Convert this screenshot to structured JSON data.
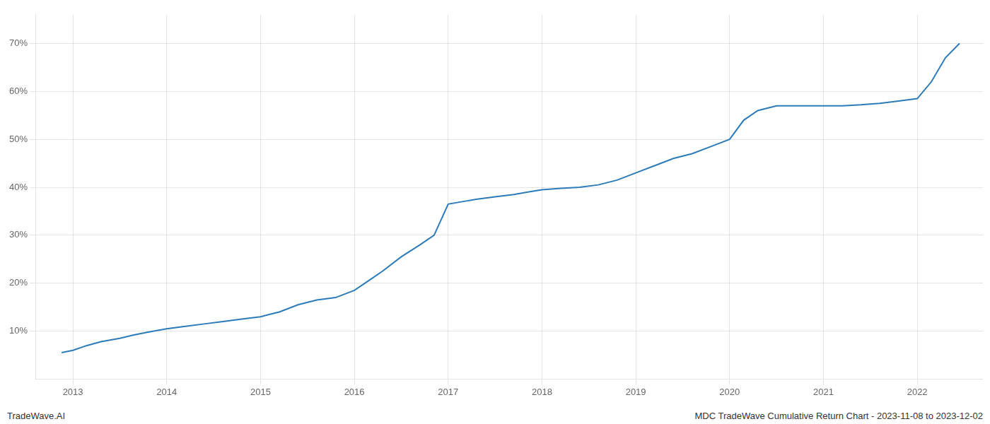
{
  "chart_data": {
    "type": "line",
    "title": "MDC TradeWave Cumulative Return Chart - 2023-11-08 to 2023-12-02",
    "annotations": [
      "TradeWave.AI"
    ],
    "color": "#2b7bba",
    "grid": true,
    "x": [
      2012.88,
      2013.0,
      2013.15,
      2013.3,
      2013.5,
      2013.65,
      2013.8,
      2014.0,
      2014.2,
      2014.4,
      2014.6,
      2014.8,
      2015.0,
      2015.1,
      2015.2,
      2015.4,
      2015.6,
      2015.8,
      2016.0,
      2016.15,
      2016.3,
      2016.5,
      2016.7,
      2016.85,
      2017.0,
      2017.15,
      2017.3,
      2017.5,
      2017.7,
      2017.85,
      2018.0,
      2018.2,
      2018.4,
      2018.6,
      2018.8,
      2019.0,
      2019.2,
      2019.4,
      2019.6,
      2019.8,
      2020.0,
      2020.15,
      2020.3,
      2020.5,
      2020.7,
      2020.85,
      2021.0,
      2021.2,
      2021.4,
      2021.6,
      2021.8,
      2022.0,
      2022.15,
      2022.3,
      2022.45
    ],
    "values": [
      5.5,
      6.0,
      7.0,
      7.8,
      8.5,
      9.2,
      9.8,
      10.5,
      11.0,
      11.5,
      12.0,
      12.5,
      13.0,
      13.5,
      14.0,
      15.5,
      16.5,
      17.0,
      18.5,
      20.5,
      22.5,
      25.5,
      28.0,
      30.0,
      36.5,
      37.0,
      37.5,
      38.0,
      38.5,
      39.0,
      39.5,
      39.8,
      40.0,
      40.5,
      41.5,
      43.0,
      44.5,
      46.0,
      47.0,
      48.5,
      50.0,
      54.0,
      56.0,
      57.0,
      57.0,
      57.0,
      57.0,
      57.0,
      57.2,
      57.5,
      58.0,
      58.5,
      62.0,
      67.0,
      70.0
    ],
    "xlim": [
      2012.6,
      2022.7
    ],
    "xticks": [
      2013,
      2014,
      2015,
      2016,
      2017,
      2018,
      2019,
      2020,
      2021,
      2022
    ],
    "ylim": [
      0,
      76
    ],
    "yticks": [
      {
        "value": 10,
        "label": "10%"
      },
      {
        "value": 20,
        "label": "20%"
      },
      {
        "value": 30,
        "label": "30%"
      },
      {
        "value": 40,
        "label": "40%"
      },
      {
        "value": 50,
        "label": "50%"
      },
      {
        "value": 60,
        "label": "60%"
      },
      {
        "value": 70,
        "label": "70%"
      }
    ]
  }
}
